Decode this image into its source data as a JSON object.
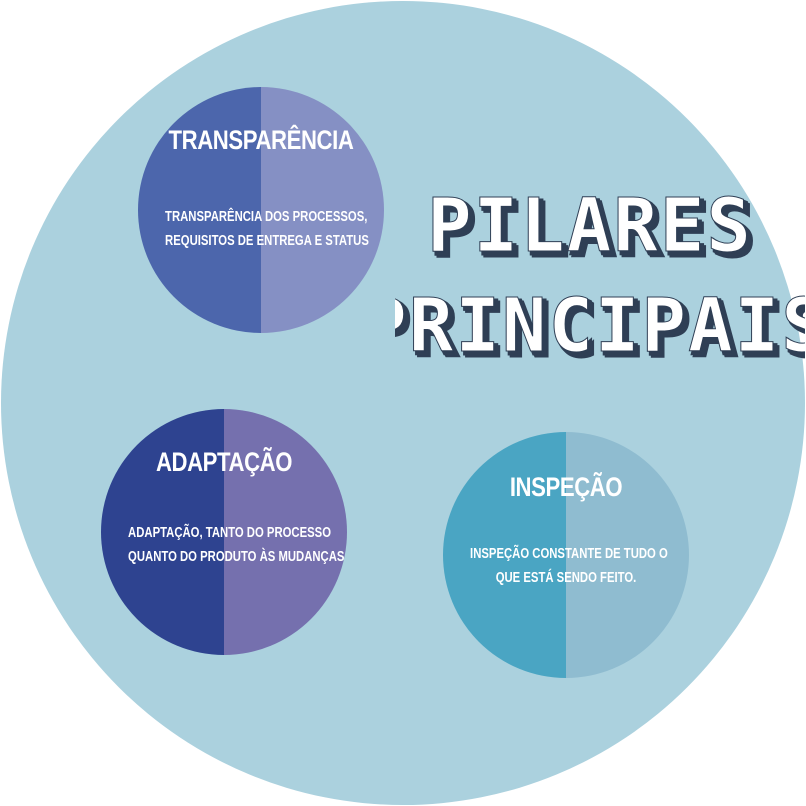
{
  "colors": {
    "background_circle": "#abd1de",
    "transparencia_left": "#4c66ac",
    "transparencia_right": "#8590c4",
    "adaptacao_left": "#2e4390",
    "adaptacao_right": "#7570ae",
    "inspecao_left": "#4aa5c3",
    "inspecao_right": "#8fbcd0",
    "headline_fill": "#ffffff",
    "headline_shadow": "#2f3f55"
  },
  "headline": {
    "line1": "PILARES",
    "line2": "PRINCIPAIS"
  },
  "pillars": {
    "transparencia": {
      "title": "TRANSPARÊNCIA",
      "desc_line1": "TRANSPARÊNCIA DOS PROCESSOS,",
      "desc_line2": "REQUISITOS DE ENTREGA E STATUS"
    },
    "adaptacao": {
      "title": "ADAPTAÇÃO",
      "desc_line1": "ADAPTAÇÃO, TANTO DO PROCESSO",
      "desc_line2": "QUANTO DO PRODUTO ÀS MUDANÇAS"
    },
    "inspecao": {
      "title": "INSPEÇÃO",
      "desc_line1": "INSPEÇÃO CONSTANTE DE TUDO O",
      "desc_line2": "QUE ESTÁ SENDO FEITO."
    }
  }
}
